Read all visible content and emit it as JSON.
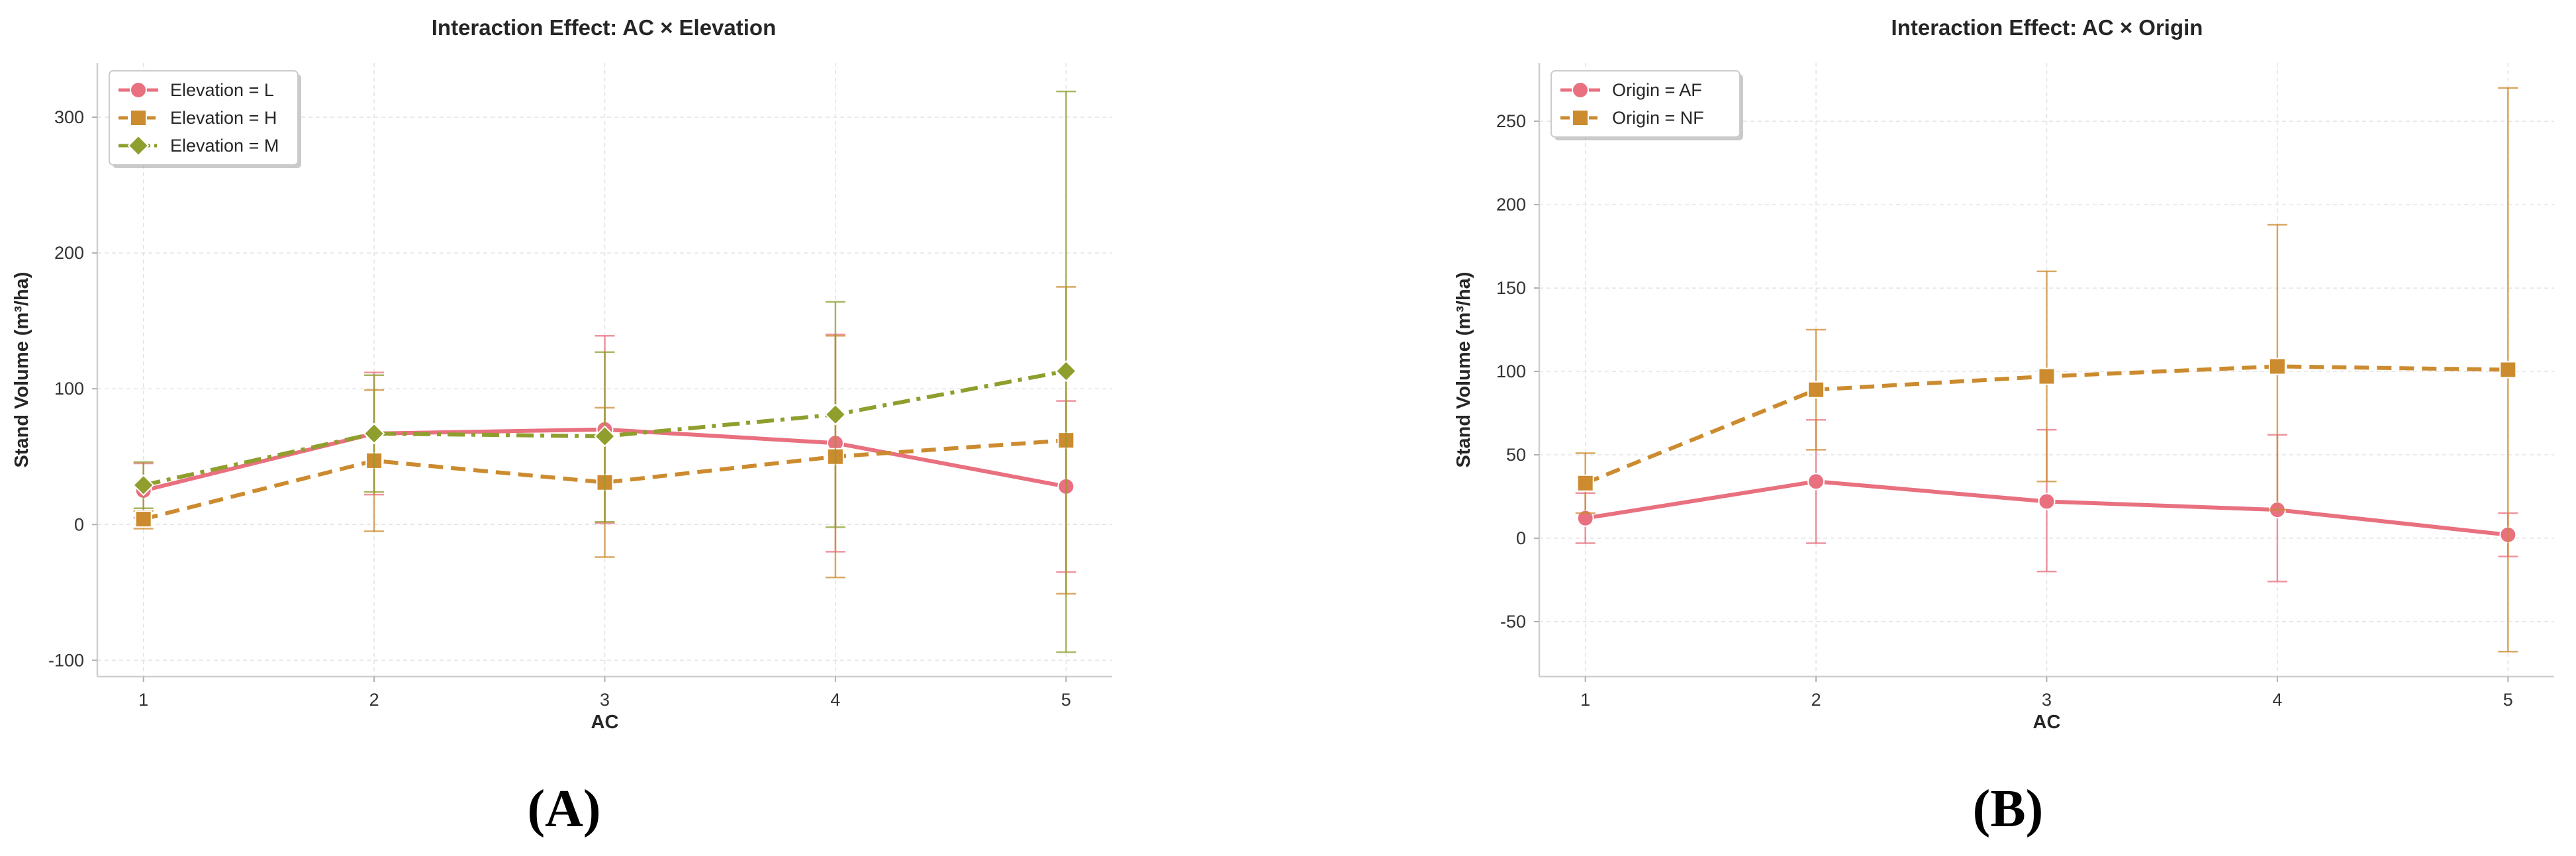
{
  "chart_data": [
    {
      "type": "line",
      "title": "Interaction Effect: AC × Elevation",
      "xlabel": "AC",
      "ylabel": "Stand Volume (m³/ha)",
      "panel_label": "(A)",
      "x": [
        1,
        2,
        3,
        4,
        5
      ],
      "xlim": [
        0.8,
        5.2
      ],
      "ylim": [
        -112,
        340
      ],
      "yticks": [
        -100,
        0,
        100,
        200,
        300
      ],
      "grid": true,
      "legend_position": "top-left",
      "series": [
        {
          "name": "Elevation = L",
          "color": "#e8707f",
          "marker": "circle",
          "dash": "solid",
          "values": [
            25,
            67,
            70,
            60,
            28
          ],
          "err_low": [
            5,
            22,
            1,
            -20,
            -35
          ],
          "err_high": [
            45,
            112,
            139,
            140,
            91
          ]
        },
        {
          "name": "Elevation = H",
          "color": "#cc8b2f",
          "marker": "square",
          "dash": "dashed",
          "values": [
            4,
            47,
            31,
            50,
            62
          ],
          "err_low": [
            -3,
            -5,
            -24,
            -39,
            -51
          ],
          "err_high": [
            10,
            99,
            86,
            139,
            175
          ]
        },
        {
          "name": "Elevation = M",
          "color": "#8f9e2d",
          "marker": "diamond",
          "dash": "dashdot",
          "values": [
            29,
            67,
            65,
            81,
            113
          ],
          "err_low": [
            12,
            24,
            2,
            -2,
            -94
          ],
          "err_high": [
            46,
            110,
            127,
            164,
            319
          ]
        }
      ]
    },
    {
      "type": "line",
      "title": "Interaction Effect: AC × Origin",
      "xlabel": "AC",
      "ylabel": "Stand Volume (m³/ha)",
      "panel_label": "(B)",
      "x": [
        1,
        2,
        3,
        4,
        5
      ],
      "xlim": [
        0.8,
        5.2
      ],
      "ylim": [
        -83,
        285
      ],
      "yticks": [
        -50,
        0,
        50,
        100,
        150,
        200,
        250
      ],
      "grid": true,
      "legend_position": "top-left",
      "series": [
        {
          "name": "Origin = AF",
          "color": "#e8707f",
          "marker": "circle",
          "dash": "solid",
          "values": [
            12,
            34,
            22,
            17,
            2
          ],
          "err_low": [
            -3,
            -3,
            -20,
            -26,
            -11
          ],
          "err_high": [
            27,
            71,
            65,
            62,
            15
          ]
        },
        {
          "name": "Origin = NF",
          "color": "#cc8b2f",
          "marker": "square",
          "dash": "dashed",
          "values": [
            33,
            89,
            97,
            103,
            101
          ],
          "err_low": [
            15,
            53,
            34,
            17,
            -68
          ],
          "err_high": [
            51,
            125,
            160,
            188,
            270
          ]
        }
      ]
    }
  ]
}
